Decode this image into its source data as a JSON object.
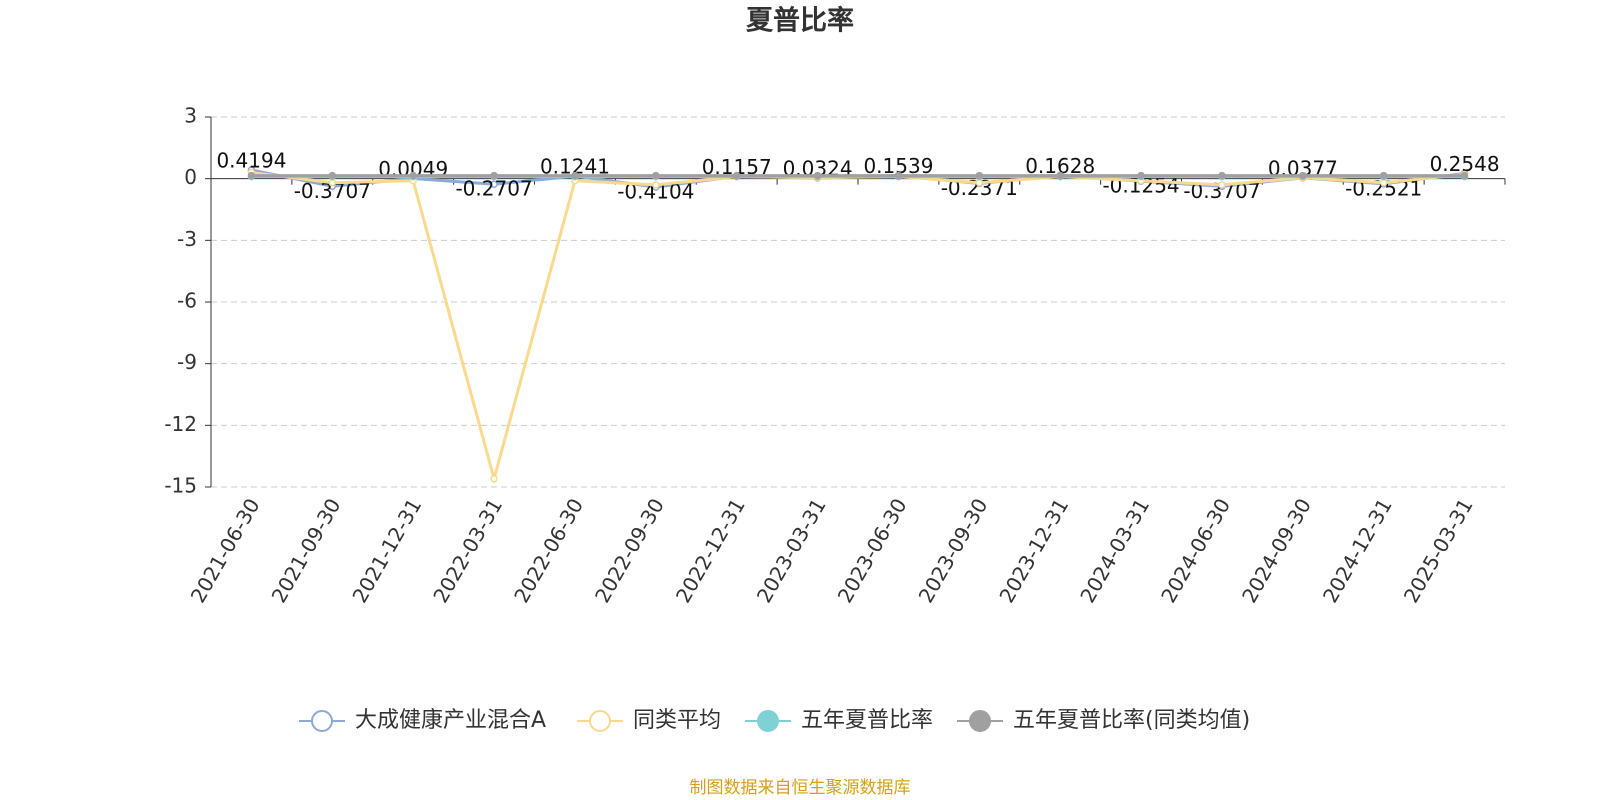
{
  "chart_data": {
    "type": "line",
    "title": "夏普比率",
    "source": "制图数据来自恒生聚源数据库",
    "categories": [
      "2021-06-30",
      "2021-09-30",
      "2021-12-31",
      "2022-03-31",
      "2022-06-30",
      "2022-09-30",
      "2022-12-31",
      "2023-03-31",
      "2023-06-30",
      "2023-09-30",
      "2023-12-31",
      "2024-03-31",
      "2024-06-30",
      "2024-09-30",
      "2024-12-31",
      "2025-03-31"
    ],
    "series": [
      {
        "name": "大成健康产业混合A",
        "color": "#8ea9d8",
        "symbol": "emptyCircle",
        "show_labels": true,
        "values": [
          0.4194,
          -0.3707,
          0.0049,
          -0.2707,
          0.1241,
          -0.4104,
          0.1157,
          0.0324,
          0.1539,
          -0.2371,
          0.1628,
          -0.1254,
          -0.3707,
          0.0377,
          -0.2521,
          0.2548
        ]
      },
      {
        "name": "同类平均",
        "color": "#fad98e",
        "symbol": "emptyCircle",
        "show_labels": false,
        "values": [
          0.3,
          -0.2,
          -0.1,
          -14.6,
          -0.1,
          -0.3,
          0.1,
          0.05,
          0.1,
          -0.2,
          0.1,
          -0.1,
          -0.3,
          0.05,
          -0.2,
          0.2
        ]
      },
      {
        "name": "五年夏普比率",
        "color": "#7fd1d6",
        "symbol": "circle",
        "show_labels": false,
        "values": [
          0.1,
          0.1,
          0.1,
          0.1,
          0.1,
          0.1,
          0.1,
          0.1,
          0.1,
          0.1,
          0.1,
          0.1,
          0.1,
          0.1,
          0.1,
          0.1
        ]
      },
      {
        "name": "五年夏普比率(同类均值)",
        "color": "#a0a0a0",
        "symbol": "circle",
        "show_labels": false,
        "values": [
          0.15,
          0.15,
          0.15,
          0.15,
          0.15,
          0.15,
          0.15,
          0.15,
          0.15,
          0.15,
          0.15,
          0.15,
          0.15,
          0.15,
          0.15,
          0.15
        ]
      }
    ],
    "ylim": [
      -15,
      3
    ],
    "yticks": [
      -15,
      -12,
      -9,
      -6,
      -3,
      0,
      3
    ],
    "grid": true
  }
}
